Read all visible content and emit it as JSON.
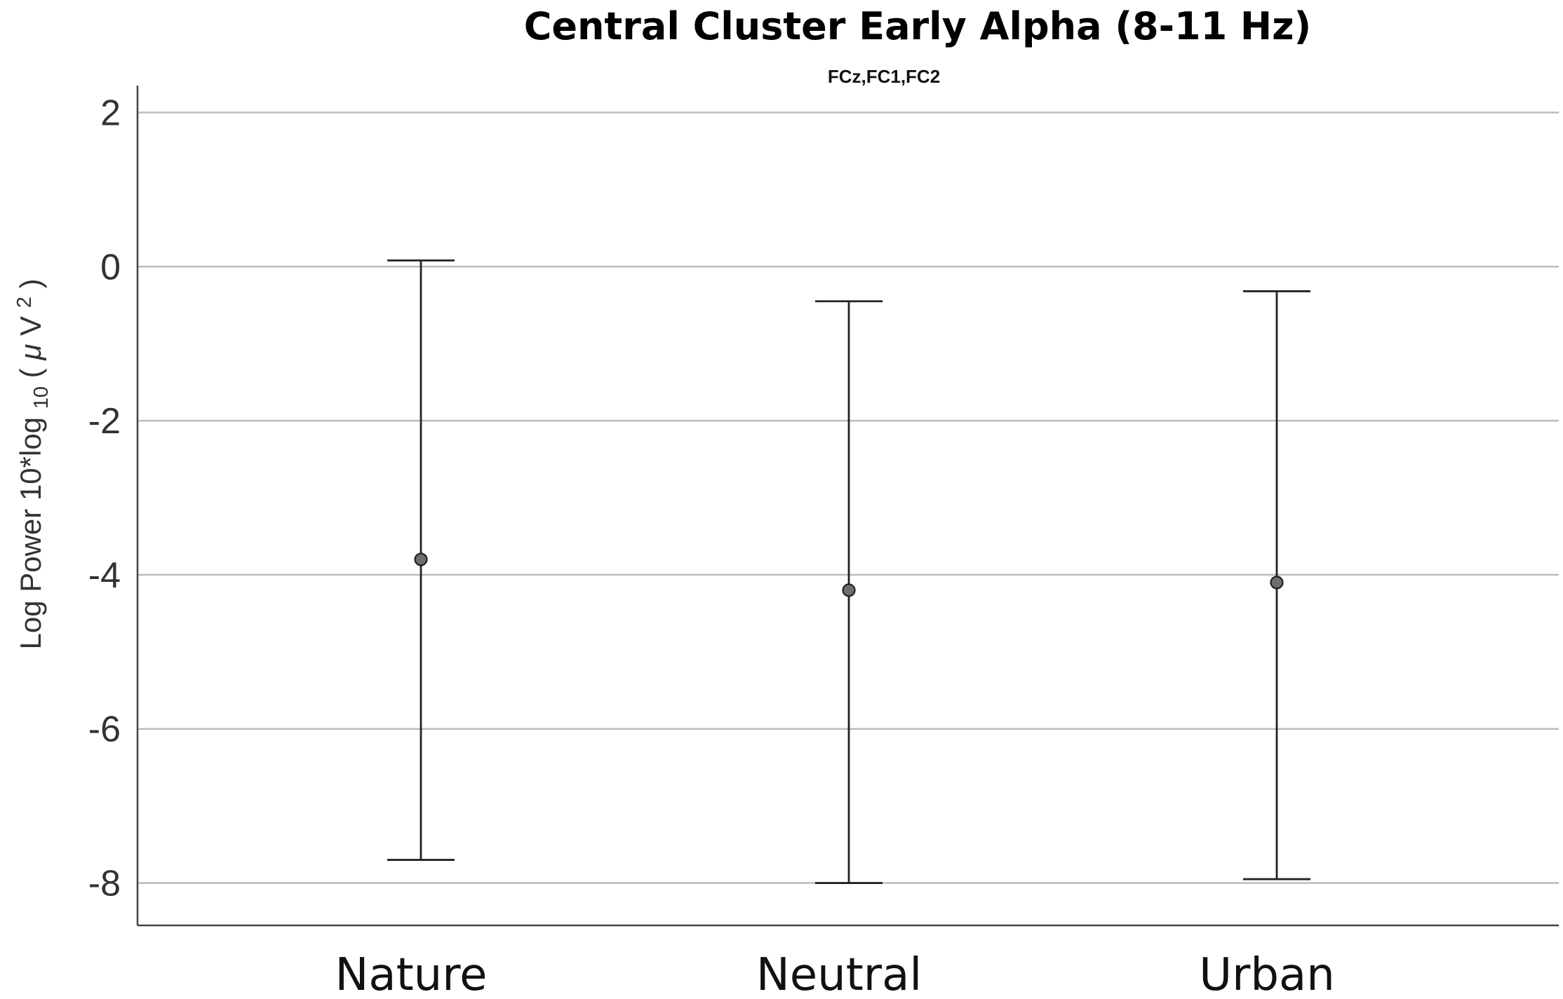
{
  "chart_data": {
    "type": "scatter",
    "title": "Central Cluster Early Alpha (8-11 Hz)",
    "subtitle": "FCz,FC1,FC2",
    "ylabel": {
      "main": "Log Power 10*log",
      "sub": "10",
      "unit_open": "(",
      "unit_mu": "μ",
      "unit_v": "V",
      "unit_sup": "2",
      "unit_close": ")"
    },
    "xlabel": "",
    "categories": [
      "Nature",
      "Neutral",
      "Urban"
    ],
    "series": [
      {
        "means": [
          -3.8,
          -4.2,
          -4.1
        ],
        "lower": [
          -7.7,
          -8.0,
          -7.95
        ],
        "upper": [
          0.08,
          -0.45,
          -0.32
        ]
      }
    ],
    "ylim": [
      -8.55,
      2.35
    ],
    "yticks": [
      2,
      0,
      -2,
      -4,
      -6,
      -8
    ],
    "ytick_labels": [
      "2",
      "0",
      "-2",
      "-4",
      "-6",
      "-8"
    ],
    "grid": true,
    "legend": "none"
  }
}
